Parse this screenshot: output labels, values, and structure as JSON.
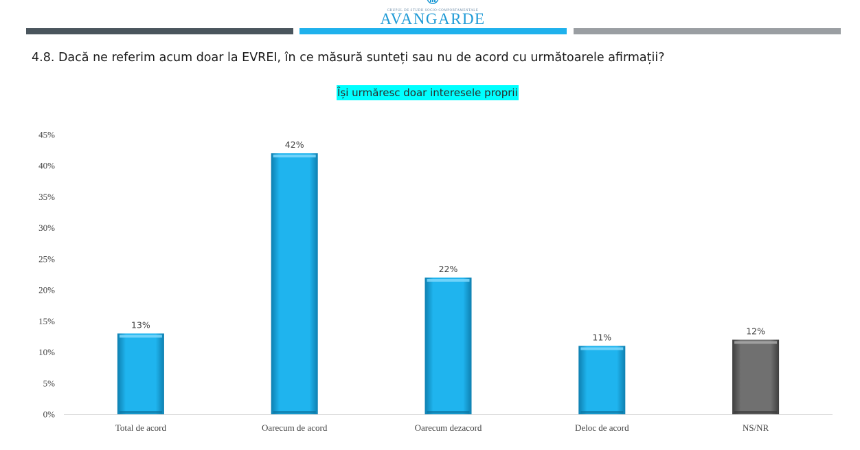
{
  "header": {
    "logo_subtitle": "GRUPUL DE STUDII SOCIO-COMPORTAMENTALE",
    "logo_text": "AVANGARDE"
  },
  "question": "4.8. Dacă ne referim acum doar la EVREI, în ce măsură sunteți sau nu de acord cu următoarele afirmații?",
  "chart_data": {
    "type": "bar",
    "title": "Își urmăresc doar interesele proprii",
    "categories": [
      "Total de acord",
      "Oarecum de acord",
      "Oarecum dezacord",
      "Deloc de acord",
      "NS/NR"
    ],
    "values": [
      13,
      42,
      22,
      11,
      12
    ],
    "value_labels": [
      "13%",
      "42%",
      "22%",
      "11%",
      "12%"
    ],
    "bar_colors": [
      "#1fb4ee",
      "#1fb4ee",
      "#1fb4ee",
      "#1fb4ee",
      "#6e6e6e"
    ],
    "ylim": [
      0,
      45
    ],
    "yticks": [
      0,
      5,
      10,
      15,
      20,
      25,
      30,
      35,
      40,
      45
    ],
    "ytick_labels": [
      "0%",
      "5%",
      "10%",
      "15%",
      "20%",
      "25%",
      "30%",
      "35%",
      "40%",
      "45%"
    ],
    "xlabel": "",
    "ylabel": "",
    "grid": false,
    "legend": "none"
  }
}
